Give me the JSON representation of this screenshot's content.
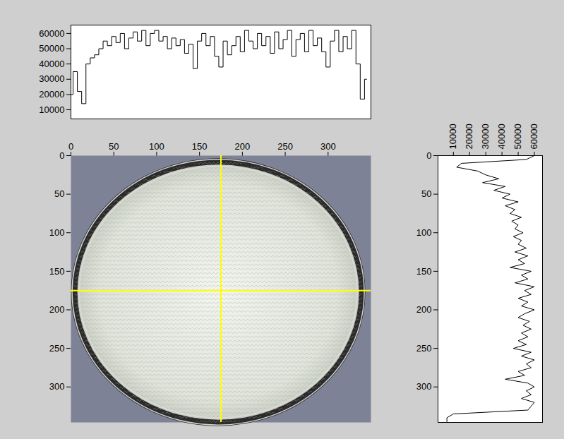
{
  "chart_data": [
    {
      "type": "line",
      "tick_labels": "y",
      "x": [
        0,
        5,
        10,
        15,
        20,
        25,
        30,
        35,
        40,
        45,
        50,
        55,
        60,
        65,
        70,
        75,
        80,
        85,
        90,
        95,
        100,
        105,
        110,
        115,
        120,
        125,
        130,
        135,
        140,
        145,
        150,
        155,
        160,
        165,
        170,
        175,
        180,
        185,
        190,
        195,
        200,
        205,
        210,
        215,
        220,
        225,
        230,
        235,
        240,
        245,
        250,
        255,
        260,
        265,
        270,
        275,
        280,
        285,
        290,
        295,
        300,
        305,
        310,
        315,
        320,
        325,
        330,
        335,
        340,
        345
      ],
      "series": [
        {
          "color": "#000000",
          "values": [
            20000,
            35000,
            22000,
            14000,
            40000,
            44000,
            46000,
            50000,
            55000,
            52000,
            58000,
            54000,
            60000,
            50000,
            57000,
            61000,
            55000,
            62000,
            52000,
            60000,
            62000,
            55000,
            58000,
            50000,
            57000,
            52000,
            56000,
            47000,
            53000,
            37000,
            55000,
            60000,
            52000,
            58000,
            45000,
            38000,
            55000,
            46000,
            52000,
            58000,
            48000,
            62000,
            55000,
            50000,
            60000,
            52000,
            58000,
            47000,
            61000,
            50000,
            56000,
            62000,
            45000,
            56000,
            60000,
            48000,
            62000,
            52000,
            57000,
            48000,
            38000,
            55000,
            62000,
            48000,
            58000,
            50000,
            62000,
            40000,
            17000,
            30000
          ]
        }
      ],
      "xlim": [
        0,
        350
      ],
      "ylim": [
        4000,
        65500
      ],
      "yticks": [
        10000,
        20000,
        30000,
        40000,
        50000,
        60000
      ]
    },
    {
      "type": "image",
      "xlim": [
        0,
        350
      ],
      "xticks": [
        0,
        50,
        100,
        150,
        200,
        250,
        300
      ],
      "ylim": [
        0,
        346
      ],
      "yticks": [
        0,
        50,
        100,
        150,
        200,
        250,
        300
      ],
      "crosshair": {
        "x": 175,
        "y": 175
      },
      "color": "#ffff00"
    },
    {
      "type": "line",
      "orientation": "horizontal",
      "y": [
        0,
        5,
        10,
        15,
        20,
        25,
        30,
        35,
        40,
        45,
        50,
        55,
        60,
        65,
        70,
        75,
        80,
        85,
        90,
        95,
        100,
        105,
        110,
        115,
        120,
        125,
        130,
        135,
        140,
        145,
        150,
        155,
        160,
        165,
        170,
        175,
        180,
        185,
        190,
        195,
        200,
        205,
        210,
        215,
        220,
        225,
        230,
        235,
        240,
        245,
        250,
        255,
        260,
        265,
        270,
        275,
        280,
        285,
        290,
        295,
        300,
        305,
        310,
        315,
        320,
        325,
        330,
        335,
        340,
        345
      ],
      "series": [
        {
          "color": "#000000",
          "values": [
            60000,
            55000,
            15000,
            12000,
            25000,
            30000,
            38000,
            28000,
            42000,
            35000,
            45000,
            40000,
            50000,
            42000,
            48000,
            45000,
            52000,
            46000,
            50000,
            48000,
            53000,
            47000,
            52000,
            50000,
            55000,
            48000,
            56000,
            50000,
            54000,
            45000,
            58000,
            52000,
            56000,
            48000,
            60000,
            54000,
            58000,
            50000,
            56000,
            52000,
            60000,
            54000,
            50000,
            57000,
            53000,
            58000,
            52000,
            56000,
            50000,
            55000,
            47000,
            58000,
            52000,
            60000,
            55000,
            58000,
            50000,
            54000,
            42000,
            56000,
            60000,
            55000,
            58000,
            52000,
            60000,
            58000,
            56000,
            10000,
            6000,
            6000
          ]
        }
      ],
      "xlim": [
        500,
        65000
      ],
      "xticks": [
        10000,
        20000,
        30000,
        40000,
        50000,
        60000
      ],
      "ylim": [
        0,
        346
      ],
      "yticks": [
        0,
        50,
        100,
        150,
        200,
        250,
        300
      ]
    }
  ]
}
